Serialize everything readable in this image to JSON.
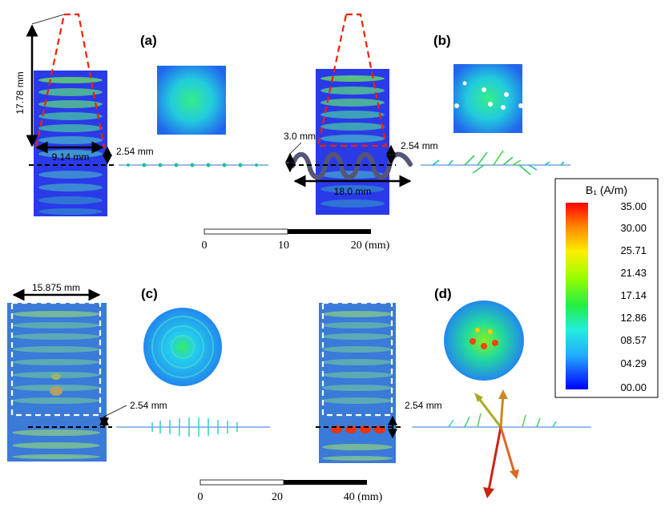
{
  "panels": [
    {
      "label": "(a)",
      "colors": {
        "bg": "#2233ee",
        "stripe": "#88ee33"
      }
    },
    {
      "label": "(b)",
      "colors": {
        "bg": "#2233ee",
        "stripe": "#88ee33"
      }
    },
    {
      "label": "(c)",
      "colors": {
        "bg": "#2266ee",
        "stripe": "#aaee44"
      }
    },
    {
      "label": "(d)",
      "colors": {
        "bg": "#2266ee",
        "stripe": "#aaee44"
      }
    }
  ],
  "annotations": {
    "a_height": "17.78 mm",
    "a_width": "9.14 mm",
    "a_gap": "2.54 mm",
    "b_coil_dia": "3.0 mm",
    "b_gap": "2.54 mm",
    "b_length": "18.0 mm",
    "c_width": "15.875 mm",
    "c_gap": "2.54 mm",
    "d_gap": "2.54 mm"
  },
  "scalebars": [
    {
      "ticks": [
        "0",
        "10",
        "20 (mm)"
      ]
    },
    {
      "ticks": [
        "0",
        "20",
        "40 (mm)"
      ]
    }
  ],
  "legend": {
    "title": "B₁ (A/m)",
    "values": [
      "35.00",
      "30.00",
      "25.71",
      "21.43",
      "17.14",
      "12.86",
      "08.57",
      "04.29",
      "00.00"
    ],
    "colors": [
      "#ff0000",
      "#ff8800",
      "#ffee00",
      "#aaff00",
      "#33ee33",
      "#22eecc",
      "#22aaff",
      "#2255ff",
      "#0000ff"
    ]
  },
  "colors": {
    "dashed_outline": "#ee2200",
    "dashed_white": "#ffffff",
    "coil": "#555577"
  }
}
